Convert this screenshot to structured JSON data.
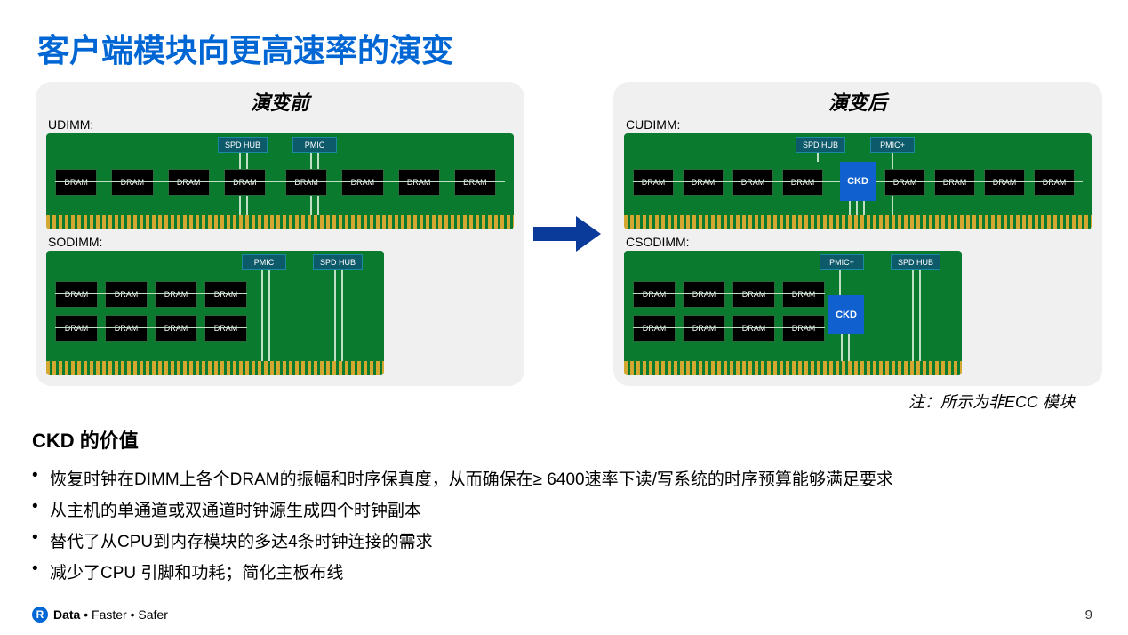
{
  "colors": {
    "title": "#0066d4",
    "pcb": "#0a7a2e",
    "pin_gold": "#d4a830",
    "chip_bg": "#000000",
    "topchip_bg": "#0d5a6a",
    "ckd_bg": "#1060d0",
    "arrow": "#0a3a9a",
    "panel_bg": "#f0f0f0",
    "logo_bg": "#0066d4"
  },
  "title": "客户端模块向更高速率的演变",
  "before": {
    "heading": "演变前",
    "udimm": {
      "label": "UDIMM:",
      "top_chips": [
        "SPD HUB",
        "PMIC"
      ],
      "dram_count": 8,
      "dram_label": "DRAM"
    },
    "sodimm": {
      "label": "SODIMM:",
      "top_chips": [
        "PMIC",
        "SPD HUB"
      ],
      "dram_rows": 2,
      "dram_cols": 4,
      "dram_label": "DRAM"
    }
  },
  "after": {
    "heading": "演变后",
    "cudimm": {
      "label": "CUDIMM:",
      "top_chips": [
        "SPD HUB",
        "PMIC+"
      ],
      "ckd_label": "CKD",
      "dram_count": 8,
      "dram_label": "DRAM"
    },
    "csodimm": {
      "label": "CSODIMM:",
      "top_chips": [
        "PMIC+",
        "SPD HUB"
      ],
      "ckd_label": "CKD",
      "dram_rows": 2,
      "dram_cols": 4,
      "dram_label": "DRAM"
    }
  },
  "note": "注：所示为非ECC 模块",
  "section": {
    "heading": "CKD 的价值",
    "bullets": [
      "恢复时钟在DIMM上各个DRAM的振幅和时序保真度，从而确保在≥ 6400速率下读/写系统的时序预算能够满足要求",
      "从主机的单通道或双通道时钟源生成四个时钟副本",
      "替代了从CPU到内存模块的多达4条时钟连接的需求",
      "减少了CPU 引脚和功耗；简化主板布线"
    ]
  },
  "footer": {
    "logo_letter": "R",
    "tagline": "Data • Faster • Safer"
  },
  "page_number": "9"
}
